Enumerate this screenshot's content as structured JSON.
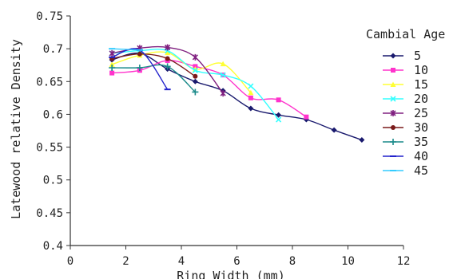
{
  "chart_data": {
    "type": "line",
    "title": "",
    "xlabel": "Ring Width (mm)",
    "ylabel": "Latewood relative Density",
    "xlim": [
      0,
      12
    ],
    "ylim": [
      0.4,
      0.75
    ],
    "x_ticks": [
      "0",
      "2",
      "4",
      "6",
      "8",
      "10",
      "12"
    ],
    "y_ticks": [
      "0.4",
      "0.45",
      "0.5",
      "0.55",
      "0.6",
      "0.65",
      "0.7",
      "0.75"
    ],
    "grid": false,
    "legend_title": "Cambial Age",
    "legend_position": "right",
    "series": [
      {
        "name": "5",
        "color": "#1a1a6e",
        "marker": "diamond",
        "points": [
          [
            1.5,
            0.683
          ],
          [
            2.5,
            0.693
          ],
          [
            3.5,
            0.669
          ],
          [
            4.5,
            0.65
          ],
          [
            5.5,
            0.636
          ],
          [
            6.5,
            0.609
          ],
          [
            7.5,
            0.599
          ],
          [
            8.5,
            0.592
          ],
          [
            9.5,
            0.576
          ],
          [
            10.5,
            0.561
          ]
        ]
      },
      {
        "name": "10",
        "color": "#ff33cc",
        "marker": "square",
        "points": [
          [
            1.5,
            0.663
          ],
          [
            2.5,
            0.667
          ],
          [
            3.5,
            0.682
          ],
          [
            4.5,
            0.673
          ],
          [
            5.5,
            0.66
          ],
          [
            6.5,
            0.625
          ],
          [
            7.5,
            0.622
          ],
          [
            8.5,
            0.596
          ]
        ]
      },
      {
        "name": "15",
        "color": "#ffff33",
        "marker": "triangle",
        "points": [
          [
            1.5,
            0.676
          ],
          [
            2.5,
            0.69
          ],
          [
            3.5,
            0.694
          ],
          [
            4.5,
            0.669
          ],
          [
            5.5,
            0.677
          ],
          [
            6.5,
            0.633
          ]
        ]
      },
      {
        "name": "20",
        "color": "#33ffff",
        "marker": "x",
        "points": [
          [
            1.5,
            0.693
          ],
          [
            2.5,
            0.697
          ],
          [
            3.5,
            0.697
          ],
          [
            4.5,
            0.667
          ],
          [
            5.5,
            0.66
          ],
          [
            6.5,
            0.643
          ],
          [
            7.5,
            0.592
          ]
        ]
      },
      {
        "name": "25",
        "color": "#802080",
        "marker": "star",
        "points": [
          [
            1.5,
            0.693
          ],
          [
            2.5,
            0.701
          ],
          [
            3.5,
            0.702
          ],
          [
            4.5,
            0.687
          ],
          [
            5.5,
            0.632
          ]
        ]
      },
      {
        "name": "30",
        "color": "#7a1a1a",
        "marker": "circle",
        "points": [
          [
            1.5,
            0.685
          ],
          [
            2.5,
            0.692
          ],
          [
            3.5,
            0.685
          ],
          [
            4.5,
            0.658
          ]
        ]
      },
      {
        "name": "35",
        "color": "#1a8a8a",
        "marker": "plus",
        "points": [
          [
            1.5,
            0.671
          ],
          [
            2.5,
            0.671
          ],
          [
            3.5,
            0.673
          ],
          [
            4.5,
            0.634
          ]
        ]
      },
      {
        "name": "40",
        "color": "#2222cc",
        "marker": "dash",
        "points": [
          [
            1.5,
            0.687
          ],
          [
            2.5,
            0.698
          ],
          [
            3.5,
            0.638
          ]
        ]
      },
      {
        "name": "45",
        "color": "#33ccff",
        "marker": "dash",
        "points": [
          [
            1.5,
            0.7
          ],
          [
            2.5,
            0.698
          ]
        ]
      }
    ]
  }
}
